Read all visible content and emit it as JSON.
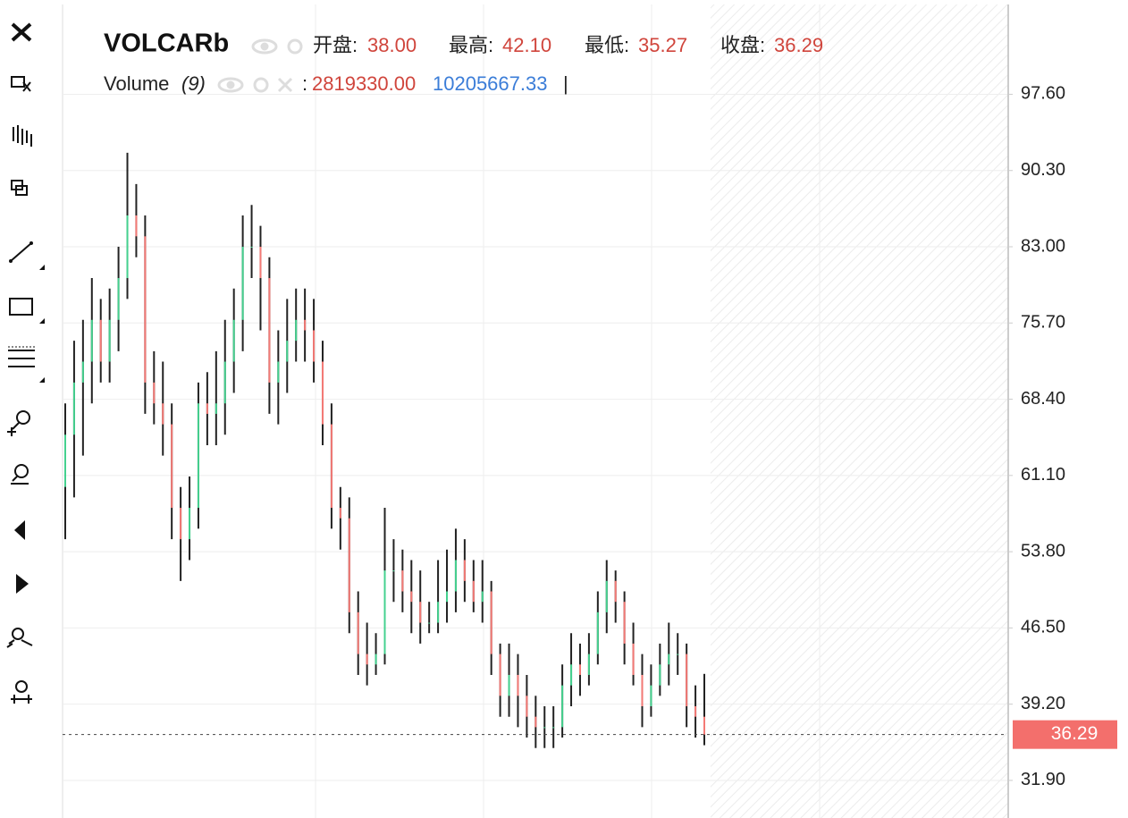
{
  "chart_data": {
    "type": "candlestick",
    "title": "VOLCARb",
    "ohlc_legend": [
      {
        "label": "开盘:",
        "value": "38.00"
      },
      {
        "label": "最高:",
        "value": "42.10"
      },
      {
        "label": "最低:",
        "value": "35.27"
      },
      {
        "label": "收盘:",
        "value": "36.29"
      }
    ],
    "volume_legend": {
      "name": "Volume",
      "params": "(9)",
      "separator": ":",
      "values": [
        "2819330.00",
        "10205667.33"
      ],
      "end": "|"
    },
    "series": [
      {
        "up_color": "#45d18f",
        "down_color": "#f47a76",
        "wick_color": "#222222",
        "open": [
          60,
          65,
          70,
          72,
          76,
          72,
          76,
          80,
          86,
          84,
          70,
          68,
          66,
          58,
          55,
          58,
          68,
          67,
          68,
          72,
          76,
          83,
          83,
          80,
          70,
          72,
          74,
          76,
          75,
          72,
          66,
          58,
          57,
          48,
          44,
          43,
          44,
          52,
          52,
          50,
          49,
          47,
          47,
          49,
          50,
          53,
          51,
          49,
          50,
          44,
          40,
          42,
          40,
          38,
          37,
          37,
          37,
          41,
          43,
          42,
          44,
          48,
          51,
          49,
          45,
          42,
          39,
          41,
          43,
          44,
          44,
          39,
          38
        ],
        "high": [
          68,
          74,
          76,
          80,
          78,
          79,
          83,
          92,
          89,
          86,
          73,
          72,
          68,
          60,
          61,
          70,
          71,
          73,
          76,
          79,
          86,
          87,
          85,
          82,
          75,
          78,
          79,
          79,
          78,
          74,
          68,
          60,
          59,
          50,
          47,
          46,
          58,
          55,
          54,
          53,
          52,
          49,
          53,
          54,
          56,
          55,
          53,
          53,
          51,
          45,
          45,
          44,
          42,
          40,
          39,
          39,
          43,
          46,
          45,
          46,
          50,
          53,
          52,
          50,
          47,
          44,
          43,
          45,
          47,
          46,
          45,
          41,
          42.1
        ],
        "low": [
          55,
          59,
          63,
          68,
          70,
          70,
          73,
          78,
          82,
          67,
          66,
          63,
          55,
          51,
          53,
          56,
          64,
          64,
          65,
          69,
          73,
          80,
          75,
          67,
          66,
          69,
          72,
          72,
          70,
          64,
          56,
          54,
          46,
          42,
          41,
          42,
          43,
          49,
          48,
          46,
          45,
          46,
          46,
          47,
          48,
          49,
          48,
          47,
          42,
          38,
          38,
          37,
          36,
          35,
          35,
          35,
          36,
          39,
          40,
          41,
          43,
          46,
          47,
          43,
          41,
          37,
          38,
          40,
          41,
          42,
          37,
          36,
          35.27
        ],
        "close": [
          65,
          70,
          72,
          76,
          72,
          76,
          80,
          86,
          84,
          70,
          68,
          66,
          58,
          55,
          58,
          68,
          67,
          68,
          72,
          76,
          83,
          83,
          80,
          70,
          72,
          74,
          76,
          75,
          72,
          66,
          58,
          57,
          48,
          44,
          43,
          44,
          52,
          52,
          50,
          49,
          47,
          47,
          49,
          50,
          53,
          51,
          49,
          50,
          44,
          40,
          42,
          40,
          38,
          37,
          37,
          37,
          41,
          43,
          42,
          44,
          48,
          51,
          49,
          45,
          42,
          39,
          41,
          43,
          44,
          44,
          39,
          38,
          36.29
        ]
      }
    ],
    "last_price": {
      "value": 36.29,
      "label": "36.29",
      "color": "#f36f6c"
    },
    "ylim": [
      28.3,
      106.2
    ],
    "yticks": [
      {
        "value": 97.6,
        "label": "97.60"
      },
      {
        "value": 90.3,
        "label": "90.30"
      },
      {
        "value": 83.0,
        "label": "83.00"
      },
      {
        "value": 75.7,
        "label": "75.70"
      },
      {
        "value": 68.4,
        "label": "68.40"
      },
      {
        "value": 61.1,
        "label": "61.10"
      },
      {
        "value": 53.8,
        "label": "53.80"
      },
      {
        "value": 46.5,
        "label": "46.50"
      },
      {
        "value": 39.2,
        "label": "39.20"
      },
      {
        "value": 31.9,
        "label": "31.90"
      }
    ],
    "grid": true
  }
}
